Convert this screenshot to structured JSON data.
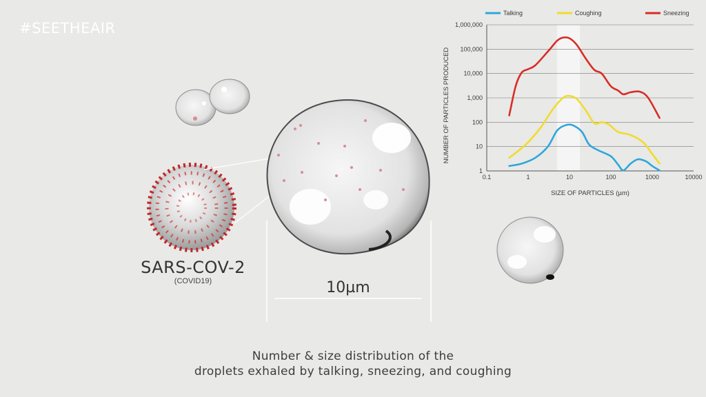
{
  "hashtag": "#SEETHEAIR",
  "virus": {
    "name": "SARS-COV-2",
    "subtitle": "(COVID19)"
  },
  "scale": {
    "label": "10µm"
  },
  "caption": {
    "line1": "Number & size distribution of the",
    "line2": "droplets exhaled by talking, sneezing, and coughing"
  },
  "chart_data": {
    "type": "line",
    "xlabel": "SIZE OF PARTICLES (µm)",
    "ylabel": "NUMBER OF PARTICLES PRODUCED",
    "x_scale": "log",
    "y_scale": "log",
    "xlim": [
      0.1,
      10000
    ],
    "ylim": [
      1,
      1000000
    ],
    "x_ticks": [
      "0.1",
      "1",
      "10",
      "100",
      "1000",
      "10000"
    ],
    "y_ticks": [
      "1",
      "10",
      "100",
      "1,000",
      "10,000",
      "100,000",
      "1,000,000"
    ],
    "grid": "horizontal",
    "legend_position": "top",
    "highlight_band_x": [
      5,
      18
    ],
    "series": [
      {
        "name": "Talking",
        "color": "#2ea6dc",
        "points": [
          [
            0.35,
            1.6
          ],
          [
            0.7,
            2
          ],
          [
            1.5,
            3.5
          ],
          [
            3,
            10
          ],
          [
            5,
            45
          ],
          [
            8,
            75
          ],
          [
            12,
            75
          ],
          [
            20,
            40
          ],
          [
            30,
            12
          ],
          [
            50,
            7
          ],
          [
            100,
            4
          ],
          [
            150,
            1.8
          ],
          [
            200,
            1.05
          ],
          [
            300,
            2
          ],
          [
            450,
            3
          ],
          [
            700,
            2.5
          ],
          [
            1000,
            1.6
          ],
          [
            1500,
            1.05
          ]
        ]
      },
      {
        "name": "Coughing",
        "color": "#f0dc2a",
        "points": [
          [
            0.35,
            3.5
          ],
          [
            0.6,
            7
          ],
          [
            1,
            15
          ],
          [
            2,
            60
          ],
          [
            4,
            350
          ],
          [
            7,
            1000
          ],
          [
            10,
            1200
          ],
          [
            15,
            900
          ],
          [
            25,
            300
          ],
          [
            40,
            90
          ],
          [
            60,
            100
          ],
          [
            90,
            80
          ],
          [
            150,
            40
          ],
          [
            300,
            30
          ],
          [
            600,
            15
          ],
          [
            1000,
            5
          ],
          [
            1500,
            2
          ]
        ]
      },
      {
        "name": "Sneezing",
        "color": "#d92b26",
        "points": [
          [
            0.35,
            190
          ],
          [
            0.5,
            3000
          ],
          [
            0.7,
            11000
          ],
          [
            1,
            15000
          ],
          [
            1.5,
            22000
          ],
          [
            3,
            80000
          ],
          [
            5,
            220000
          ],
          [
            7,
            300000
          ],
          [
            10,
            280000
          ],
          [
            15,
            150000
          ],
          [
            25,
            40000
          ],
          [
            40,
            14000
          ],
          [
            60,
            10000
          ],
          [
            100,
            3000
          ],
          [
            150,
            2000
          ],
          [
            200,
            1400
          ],
          [
            300,
            1700
          ],
          [
            500,
            1800
          ],
          [
            800,
            1000
          ],
          [
            1500,
            150
          ]
        ]
      }
    ]
  }
}
